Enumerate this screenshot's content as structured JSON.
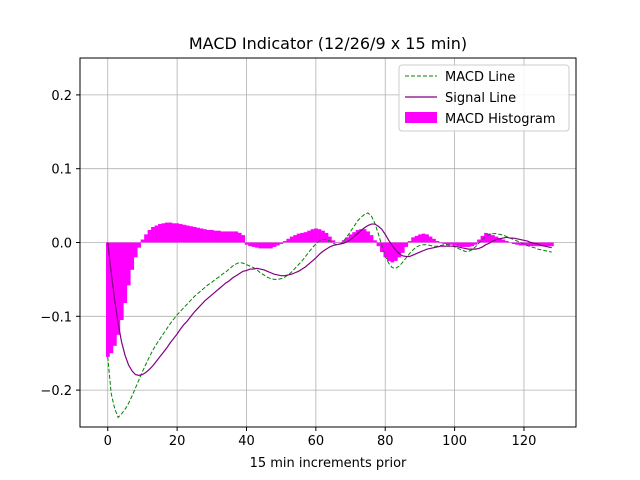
{
  "chart_data": {
    "type": "line",
    "title": "MACD Indicator (12/26/9 x 15 min)",
    "xlabel": "15 min increments prior",
    "ylabel": "",
    "xlim": [
      -8,
      135
    ],
    "ylim": [
      -0.25,
      0.25
    ],
    "x_ticks": [
      0,
      20,
      40,
      60,
      80,
      100,
      120
    ],
    "x_tick_labels": [
      "0",
      "20",
      "40",
      "60",
      "80",
      "100",
      "120"
    ],
    "y_ticks": [
      -0.2,
      -0.1,
      0.0,
      0.1,
      0.2
    ],
    "y_tick_labels": [
      "−0.2",
      "−0.1",
      "0.0",
      "0.1",
      "0.2"
    ],
    "grid": true,
    "legend_position": "top-right",
    "colors": {
      "macd": "#008000",
      "signal": "#800080",
      "histogram": "#ff00ff",
      "grid": "#b0b0b0"
    },
    "x": [
      0,
      1,
      2,
      3,
      4,
      5,
      6,
      7,
      8,
      9,
      10,
      11,
      12,
      13,
      14,
      15,
      16,
      17,
      18,
      19,
      20,
      21,
      22,
      23,
      24,
      25,
      26,
      27,
      28,
      29,
      30,
      31,
      32,
      33,
      34,
      35,
      36,
      37,
      38,
      39,
      40,
      41,
      42,
      43,
      44,
      45,
      46,
      47,
      48,
      49,
      50,
      51,
      52,
      53,
      54,
      55,
      56,
      57,
      58,
      59,
      60,
      61,
      62,
      63,
      64,
      65,
      66,
      67,
      68,
      69,
      70,
      71,
      72,
      73,
      74,
      75,
      76,
      77,
      78,
      79,
      80,
      81,
      82,
      83,
      84,
      85,
      86,
      87,
      88,
      89,
      90,
      91,
      92,
      93,
      94,
      95,
      96,
      97,
      98,
      99,
      100,
      101,
      102,
      103,
      104,
      105,
      106,
      107,
      108,
      109,
      110,
      111,
      112,
      113,
      114,
      115,
      116,
      117,
      118,
      119,
      120,
      121,
      122,
      123,
      124,
      125,
      126,
      127,
      128
    ],
    "series": [
      {
        "name": "MACD Line",
        "style": "dashed",
        "values": [
          -0.155,
          -0.205,
          -0.225,
          -0.237,
          -0.232,
          -0.226,
          -0.218,
          -0.208,
          -0.197,
          -0.186,
          -0.175,
          -0.165,
          -0.155,
          -0.146,
          -0.138,
          -0.131,
          -0.124,
          -0.117,
          -0.11,
          -0.104,
          -0.098,
          -0.093,
          -0.088,
          -0.083,
          -0.078,
          -0.073,
          -0.069,
          -0.065,
          -0.061,
          -0.057,
          -0.054,
          -0.05,
          -0.047,
          -0.043,
          -0.04,
          -0.036,
          -0.032,
          -0.029,
          -0.027,
          -0.028,
          -0.03,
          -0.032,
          -0.034,
          -0.037,
          -0.041,
          -0.044,
          -0.047,
          -0.049,
          -0.05,
          -0.05,
          -0.049,
          -0.047,
          -0.044,
          -0.04,
          -0.035,
          -0.03,
          -0.025,
          -0.019,
          -0.013,
          -0.007,
          -0.002,
          0.002,
          0.004,
          0.004,
          0.002,
          -0.001,
          -0.003,
          -0.002,
          0.002,
          0.008,
          0.015,
          0.022,
          0.029,
          0.034,
          0.038,
          0.04,
          0.036,
          0.026,
          0.012,
          -0.004,
          -0.018,
          -0.028,
          -0.034,
          -0.035,
          -0.032,
          -0.027,
          -0.021,
          -0.015,
          -0.01,
          -0.006,
          -0.004,
          -0.003,
          -0.003,
          -0.004,
          -0.005,
          -0.005,
          -0.004,
          -0.003,
          -0.003,
          -0.004,
          -0.006,
          -0.008,
          -0.01,
          -0.012,
          -0.012,
          -0.01,
          -0.006,
          -0.001,
          0.004,
          0.008,
          0.011,
          0.012,
          0.012,
          0.011,
          0.01,
          0.008,
          0.006,
          0.004,
          0.002,
          0.0,
          -0.002,
          -0.004,
          -0.006,
          -0.007,
          -0.009,
          -0.01,
          -0.011,
          -0.012,
          -0.013
        ]
      },
      {
        "name": "Signal Line",
        "style": "solid",
        "values": [
          0.0,
          -0.041,
          -0.078,
          -0.11,
          -0.135,
          -0.153,
          -0.166,
          -0.174,
          -0.179,
          -0.18,
          -0.179,
          -0.176,
          -0.172,
          -0.167,
          -0.161,
          -0.155,
          -0.149,
          -0.143,
          -0.136,
          -0.13,
          -0.124,
          -0.117,
          -0.111,
          -0.106,
          -0.1,
          -0.094,
          -0.089,
          -0.084,
          -0.079,
          -0.075,
          -0.071,
          -0.067,
          -0.063,
          -0.059,
          -0.055,
          -0.052,
          -0.048,
          -0.045,
          -0.042,
          -0.039,
          -0.038,
          -0.036,
          -0.036,
          -0.035,
          -0.036,
          -0.037,
          -0.039,
          -0.041,
          -0.043,
          -0.044,
          -0.045,
          -0.045,
          -0.044,
          -0.043,
          -0.041,
          -0.039,
          -0.036,
          -0.033,
          -0.029,
          -0.025,
          -0.021,
          -0.016,
          -0.012,
          -0.009,
          -0.006,
          -0.004,
          -0.003,
          -0.002,
          -0.001,
          0.001,
          0.004,
          0.008,
          0.012,
          0.016,
          0.02,
          0.023,
          0.025,
          0.025,
          0.022,
          0.018,
          0.011,
          0.003,
          -0.004,
          -0.01,
          -0.015,
          -0.018,
          -0.019,
          -0.019,
          -0.017,
          -0.015,
          -0.013,
          -0.011,
          -0.009,
          -0.008,
          -0.007,
          -0.006,
          -0.005,
          -0.005,
          -0.005,
          -0.005,
          -0.005,
          -0.006,
          -0.007,
          -0.008,
          -0.009,
          -0.009,
          -0.009,
          -0.008,
          -0.006,
          -0.003,
          -0.001,
          0.002,
          0.004,
          0.005,
          0.006,
          0.007,
          0.006,
          0.006,
          0.005,
          0.004,
          0.003,
          0.002,
          0.0,
          -0.001,
          -0.002,
          -0.004,
          -0.005,
          -0.006,
          -0.007
        ]
      }
    ],
    "histogram": {
      "name": "MACD Histogram",
      "values": [
        -0.155,
        -0.15,
        -0.14,
        -0.125,
        -0.105,
        -0.082,
        -0.058,
        -0.037,
        -0.02,
        -0.007,
        0.004,
        0.011,
        0.017,
        0.021,
        0.023,
        0.025,
        0.026,
        0.027,
        0.027,
        0.026,
        0.026,
        0.025,
        0.024,
        0.023,
        0.022,
        0.021,
        0.02,
        0.019,
        0.018,
        0.017,
        0.017,
        0.016,
        0.016,
        0.015,
        0.015,
        0.015,
        0.015,
        0.015,
        0.013,
        0.01,
        -0.003,
        -0.005,
        -0.006,
        -0.007,
        -0.008,
        -0.008,
        -0.008,
        -0.008,
        -0.006,
        -0.004,
        -0.002,
        0.002,
        0.005,
        0.008,
        0.01,
        0.012,
        0.013,
        0.014,
        0.016,
        0.018,
        0.019,
        0.018,
        0.016,
        0.013,
        0.008,
        0.003,
        0.0,
        0.0,
        0.003,
        0.007,
        0.011,
        0.014,
        0.017,
        0.018,
        0.018,
        0.015,
        0.01,
        0.003,
        -0.005,
        -0.013,
        -0.02,
        -0.025,
        -0.027,
        -0.025,
        -0.02,
        -0.014,
        -0.006,
        0.002,
        0.007,
        0.009,
        0.011,
        0.012,
        0.011,
        0.008,
        0.005,
        0.002,
        -0.001,
        -0.002,
        -0.003,
        -0.003,
        -0.004,
        -0.005,
        -0.006,
        -0.006,
        -0.006,
        -0.005,
        -0.003,
        0.004,
        0.009,
        0.013,
        0.012,
        0.01,
        0.008,
        0.006,
        0.004,
        0.002,
        0.0,
        -0.002,
        -0.003,
        -0.004,
        -0.004,
        -0.005,
        -0.005,
        -0.005,
        -0.005,
        -0.005,
        -0.005,
        -0.005,
        -0.005
      ]
    }
  }
}
